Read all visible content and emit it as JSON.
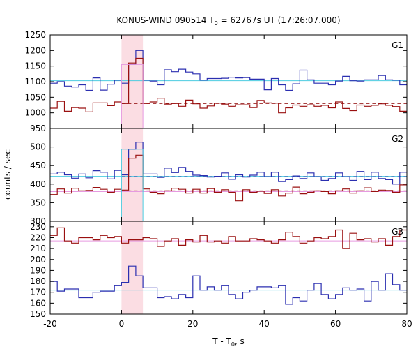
{
  "chart_data": {
    "type": "line",
    "title_prefix": "KONUS-WIND 090514 T",
    "title_sub": "0",
    "title_suffix": " = 62767s UT (17:26:07.000)",
    "ylabel": "counts / sec",
    "xlabel_prefix": "T - T",
    "xlabel_sub": "0",
    "xlabel_suffix": ", s",
    "xlim": [
      -20,
      80
    ],
    "xticks": [
      -20,
      0,
      20,
      40,
      60,
      80
    ],
    "tick_labels": {
      "x": [
        "-20",
        "0",
        "20",
        "40",
        "60",
        "80"
      ]
    },
    "highlight_interval": [
      0,
      6
    ],
    "bin_edges": [
      -20,
      -18,
      -16,
      -14,
      -12,
      -10,
      -8,
      -6,
      -4,
      -2,
      0,
      2,
      4,
      6,
      8,
      10,
      12,
      14,
      16,
      18,
      20,
      22,
      24,
      26,
      28,
      30,
      32,
      34,
      36,
      38,
      40,
      42,
      44,
      46,
      48,
      50,
      52,
      54,
      56,
      58,
      60,
      62,
      64,
      66,
      68,
      70,
      72,
      74,
      76,
      78,
      80
    ],
    "colors": {
      "blue": "#2b2fb0",
      "red": "#9a1010",
      "cyan": "#4ccce0",
      "pink": "#e69ae0",
      "dash_blue": "#1a1a99",
      "dash_red": "#8b0000",
      "highlight": "#fbdde3"
    },
    "panels": [
      {
        "name": "G1",
        "ylim": [
          950,
          1250
        ],
        "yticks": [
          950,
          1000,
          1050,
          1100,
          1150,
          1200,
          1250
        ],
        "ytick_labels": [
          "950",
          "1000",
          "1050",
          "1100",
          "1150",
          "1200",
          "1250"
        ],
        "series": [
          {
            "name": "G1 counts (blue)",
            "color": "blue",
            "values": [
              1095,
              1100,
              1086,
              1083,
              1090,
              1072,
              1112,
              1073,
              1092,
              1105,
              1095,
              1155,
              1200,
              1105,
              1102,
              1090,
              1138,
              1132,
              1140,
              1131,
              1125,
              1105,
              1110,
              1110,
              1111,
              1114,
              1112,
              1113,
              1108,
              1108,
              1074,
              1110,
              1090,
              1072,
              1093,
              1137,
              1106,
              1095,
              1095,
              1090,
              1102,
              1117,
              1103,
              1102,
              1106,
              1106,
              1120,
              1106,
              1105,
              1090
            ]
          },
          {
            "name": "G1 counts (red)",
            "color": "red",
            "values": [
              1015,
              1037,
              1005,
              1017,
              1015,
              1003,
              1032,
              1032,
              1023,
              1035,
              1030,
              1160,
              1175,
              1030,
              1035,
              1047,
              1028,
              1030,
              1021,
              1041,
              1029,
              1015,
              1022,
              1031,
              1028,
              1021,
              1026,
              1026,
              1017,
              1040,
              1032,
              1031,
              1000,
              1016,
              1025,
              1021,
              1026,
              1021,
              1024,
              1016,
              1035,
              1014,
              1007,
              1025,
              1021,
              1024,
              1029,
              1024,
              1020,
              1005
            ]
          }
        ],
        "levels": [
          {
            "color": "cyan",
            "value": 1103
          },
          {
            "color": "pink",
            "value": 1025
          },
          {
            "color": "dash_red",
            "value": 1030,
            "from": 0
          }
        ],
        "overlays": [
          {
            "color": "pink",
            "x0": 0,
            "x1": 6,
            "value": 1155
          }
        ]
      },
      {
        "name": "G2",
        "ylim": [
          300,
          550
        ],
        "yticks": [
          300,
          350,
          400,
          450,
          500
        ],
        "ytick_labels": [
          "300",
          "350",
          "400",
          "450",
          "500"
        ],
        "series": [
          {
            "name": "G2 counts (blue)",
            "color": "blue",
            "values": [
              427,
              432,
              425,
              416,
              427,
              417,
              436,
              432,
              414,
              437,
              425,
              494,
              513,
              427,
              427,
              418,
              443,
              431,
              445,
              434,
              424,
              423,
              419,
              421,
              430,
              413,
              425,
              419,
              424,
              432,
              420,
              432,
              407,
              412,
              422,
              415,
              430,
              420,
              410,
              415,
              430,
              420,
              410,
              434,
              412,
              432,
              415,
              412,
              400,
              432
            ]
          },
          {
            "name": "G2 counts (red)",
            "color": "red",
            "values": [
              372,
              387,
              376,
              389,
              382,
              383,
              391,
              386,
              378,
              386,
              384,
              470,
              478,
              387,
              378,
              374,
              382,
              389,
              386,
              376,
              386,
              376,
              388,
              378,
              385,
              378,
              355,
              385,
              378,
              381,
              375,
              385,
              368,
              376,
              392,
              374,
              378,
              382,
              380,
              374,
              382,
              387,
              376,
              382,
              390,
              380,
              384,
              383,
              378,
              398
            ]
          }
        ],
        "levels": [
          {
            "color": "cyan",
            "value": 421
          },
          {
            "color": "pink",
            "value": 380
          },
          {
            "color": "dash_blue",
            "value": 420,
            "from": 0
          },
          {
            "color": "dash_red",
            "value": 382,
            "from": 0
          }
        ],
        "overlays": [
          {
            "color": "cyan",
            "x0": 0,
            "x1": 6,
            "value": 494
          }
        ]
      },
      {
        "name": "G3",
        "ylim": [
          150,
          235
        ],
        "yticks": [
          150,
          160,
          170,
          180,
          190,
          200,
          210,
          220,
          230
        ],
        "ytick_labels": [
          "150",
          "160",
          "170",
          "180",
          "190",
          "200",
          "210",
          "220",
          "230"
        ],
        "series": [
          {
            "name": "G3 counts (red)",
            "color": "red",
            "values": [
              222,
              229,
              217,
              215,
              220,
              220,
              218,
              222,
              220,
              221,
              215,
              218,
              218,
              220,
              219,
              212,
              217,
              219,
              213,
              218,
              216,
              222,
              216,
              217,
              215,
              221,
              217,
              217,
              219,
              218,
              217,
              215,
              218,
              225,
              221,
              215,
              217,
              220,
              219,
              221,
              227,
              210,
              224,
              218,
              219,
              216,
              219,
              213,
              221,
              227
            ]
          },
          {
            "name": "G3 counts (blue)",
            "color": "blue",
            "values": [
              180,
              171,
              173,
              173,
              165,
              165,
              170,
              171,
              171,
              176,
              179,
              194,
              185,
              174,
              174,
              165,
              166,
              164,
              168,
              165,
              185,
              172,
              175,
              172,
              176,
              168,
              164,
              170,
              172,
              175,
              175,
              174,
              176,
              159,
              165,
              162,
              172,
              178,
              168,
              164,
              168,
              174,
              172,
              173,
              162,
              180,
              172,
              187,
              177,
              172
            ]
          }
        ],
        "levels": [
          {
            "color": "pink",
            "value": 217
          },
          {
            "color": "cyan",
            "value": 172
          }
        ],
        "overlays": []
      }
    ]
  }
}
